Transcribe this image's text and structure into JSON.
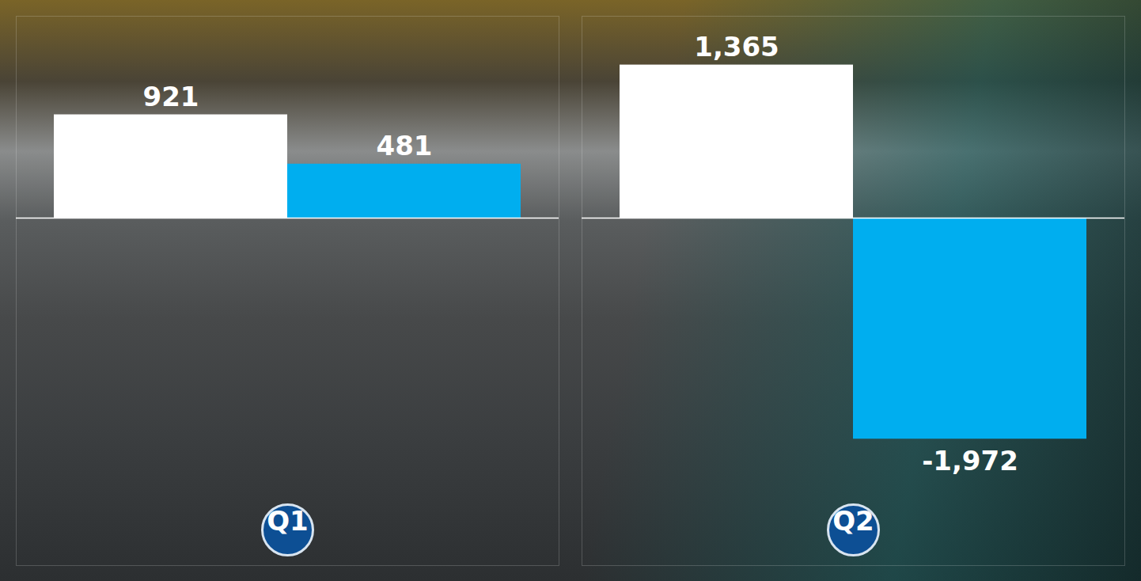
{
  "chart_data": {
    "type": "bar",
    "categories": [
      "Q1",
      "Q2"
    ],
    "series": [
      {
        "color": "#ffffff",
        "values": [
          921,
          1365
        ],
        "value_labels": [
          "921",
          "1,365"
        ]
      },
      {
        "color": "#00aeef",
        "values": [
          481,
          -1972
        ],
        "value_labels": [
          "481",
          "-1,972"
        ]
      }
    ],
    "ylim": [
      -3100,
      1800
    ],
    "data_labels": true,
    "tick_labels": "x"
  }
}
